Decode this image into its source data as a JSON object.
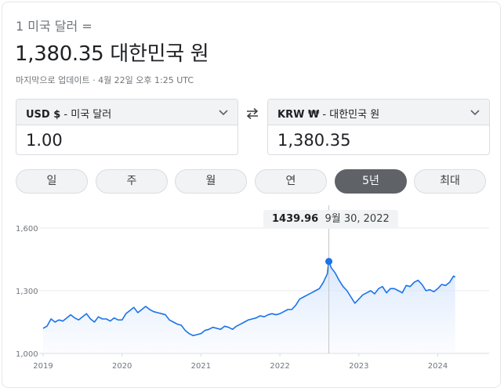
{
  "header": {
    "subtitle": "1 미국 달러 =",
    "headline": "1,380.35 대한민국 원",
    "updated": "마지막으로 업데이트 · 4월 22일 오후 1:25 UTC"
  },
  "converter": {
    "from": {
      "code": "USD $",
      "name": " - 미국 달러",
      "value": "1.00"
    },
    "to": {
      "code": "KRW ₩",
      "name": " - 대한민국 원",
      "value": "1,380.35"
    },
    "swap_icon": "swap-arrows-icon",
    "dropdown_icon": "chevron-down-icon"
  },
  "ranges": {
    "items": [
      "일",
      "주",
      "월",
      "연",
      "5년",
      "최대"
    ],
    "selected": "5년"
  },
  "tooltip": {
    "value": "1439.96",
    "date": "9월 30, 2022"
  },
  "colors": {
    "line": "#1a73e8",
    "fill": "#e8f0fe",
    "active_tab": "#5f6368",
    "tab_bg": "#f1f3f4"
  },
  "chart_data": {
    "type": "area",
    "ylim": [
      1000,
      1600
    ],
    "y_ticks": [
      "1,600",
      "1,300",
      "1,000"
    ],
    "y_tick_values": [
      1600,
      1300,
      1000
    ],
    "x_ticks": [
      "2019",
      "2020",
      "2021",
      "2022",
      "2023",
      "2024"
    ],
    "x_tick_values": [
      2019,
      2020,
      2021,
      2022,
      2023,
      2024
    ],
    "highlight": {
      "x": 2022.62,
      "y": 1439.96
    },
    "series": [
      {
        "x": [
          2019.0,
          2019.05,
          2019.1,
          2019.15,
          2019.2,
          2019.25,
          2019.3,
          2019.35,
          2019.4,
          2019.45,
          2019.5,
          2019.55,
          2019.6,
          2019.65,
          2019.7,
          2019.75,
          2019.8,
          2019.85,
          2019.9,
          2019.95,
          2020.0,
          2020.05,
          2020.1,
          2020.15,
          2020.2,
          2020.25,
          2020.3,
          2020.35,
          2020.4,
          2020.45,
          2020.5,
          2020.55,
          2020.6,
          2020.65,
          2020.7,
          2020.75,
          2020.8,
          2020.85,
          2020.9,
          2020.95,
          2021.0,
          2021.05,
          2021.1,
          2021.15,
          2021.2,
          2021.25,
          2021.3,
          2021.35,
          2021.4,
          2021.45,
          2021.5,
          2021.55,
          2021.6,
          2021.65,
          2021.7,
          2021.75,
          2021.8,
          2021.85,
          2021.9,
          2021.95,
          2022.0,
          2022.05,
          2022.1,
          2022.15,
          2022.2,
          2022.25,
          2022.3,
          2022.35,
          2022.4,
          2022.45,
          2022.5,
          2022.55,
          2022.6,
          2022.62,
          2022.65,
          2022.7,
          2022.75,
          2022.8,
          2022.85,
          2022.9,
          2022.95,
          2023.0,
          2023.05,
          2023.1,
          2023.15,
          2023.2,
          2023.25,
          2023.3,
          2023.35,
          2023.4,
          2023.45,
          2023.5,
          2023.55,
          2023.6,
          2023.65,
          2023.7,
          2023.75,
          2023.8,
          2023.85,
          2023.9,
          2023.95,
          2024.0,
          2024.05,
          2024.1,
          2024.15,
          2024.2,
          2024.22
        ],
        "values": [
          1120,
          1130,
          1165,
          1150,
          1160,
          1155,
          1170,
          1185,
          1170,
          1160,
          1175,
          1190,
          1165,
          1150,
          1175,
          1165,
          1165,
          1155,
          1170,
          1160,
          1160,
          1190,
          1205,
          1220,
          1195,
          1210,
          1225,
          1210,
          1200,
          1195,
          1190,
          1185,
          1160,
          1150,
          1140,
          1135,
          1110,
          1095,
          1085,
          1090,
          1095,
          1110,
          1115,
          1125,
          1120,
          1115,
          1130,
          1125,
          1115,
          1130,
          1140,
          1150,
          1160,
          1165,
          1170,
          1180,
          1175,
          1185,
          1190,
          1185,
          1190,
          1200,
          1210,
          1210,
          1230,
          1260,
          1270,
          1280,
          1290,
          1300,
          1310,
          1340,
          1380,
          1439.96,
          1410,
          1385,
          1350,
          1320,
          1300,
          1270,
          1240,
          1260,
          1280,
          1290,
          1300,
          1285,
          1310,
          1320,
          1290,
          1310,
          1310,
          1300,
          1290,
          1325,
          1320,
          1340,
          1350,
          1330,
          1300,
          1305,
          1295,
          1310,
          1330,
          1325,
          1340,
          1370,
          1365
        ]
      }
    ]
  }
}
